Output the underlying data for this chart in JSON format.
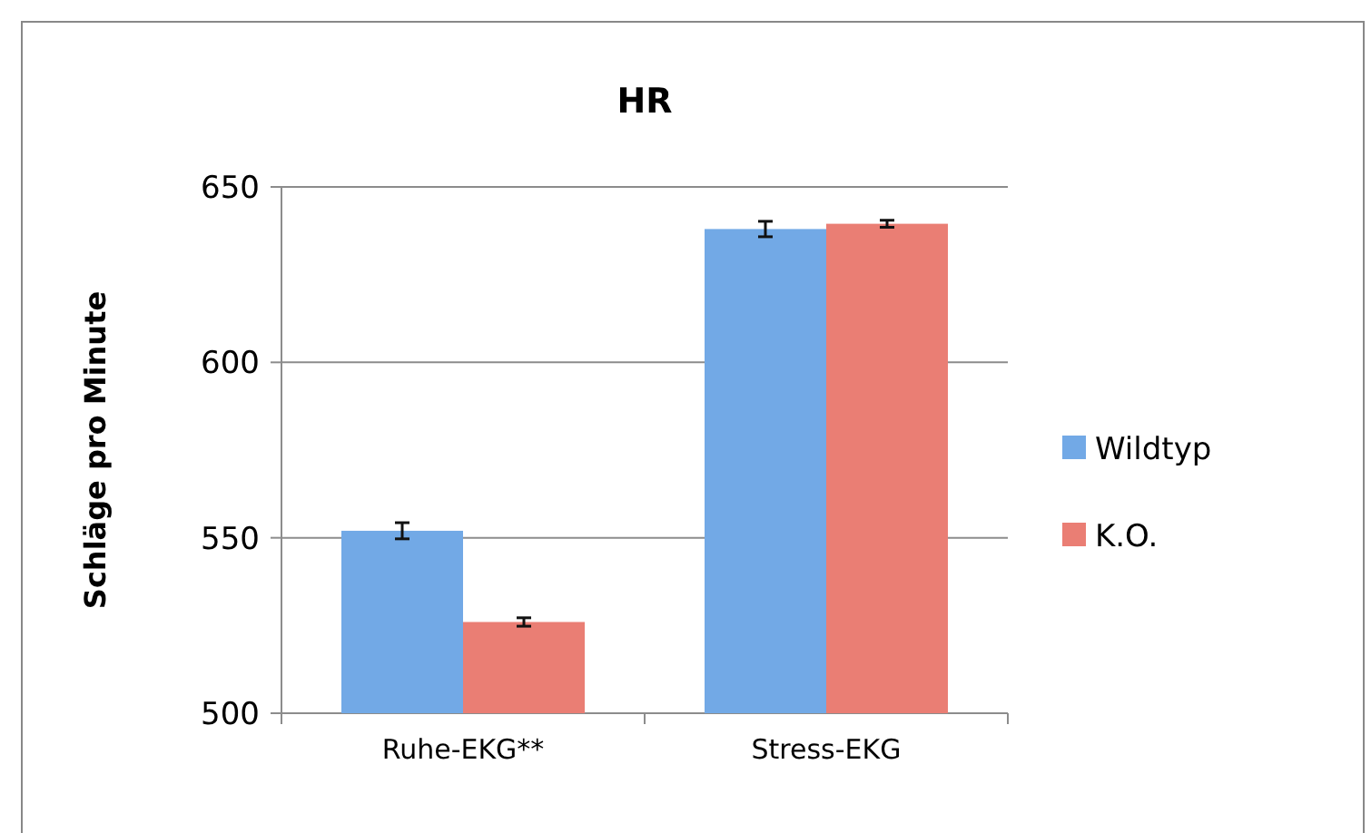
{
  "chart_data": {
    "type": "bar",
    "title": "HR",
    "ylabel": "Schläge pro Minute",
    "categories": [
      "Ruhe-EKG**",
      "Stress-EKG"
    ],
    "series": [
      {
        "name": "Wildtyp",
        "color": "#72a9e6",
        "values": [
          552,
          638
        ],
        "errors": [
          2.3,
          2.2
        ]
      },
      {
        "name": "K.O.",
        "color": "#ea7e74",
        "values": [
          526,
          639.5
        ],
        "errors": [
          1.2,
          1
        ]
      }
    ],
    "ylim": [
      500,
      650
    ],
    "yticks": [
      500,
      550,
      600,
      650
    ],
    "grid": "y",
    "legend": "right"
  }
}
